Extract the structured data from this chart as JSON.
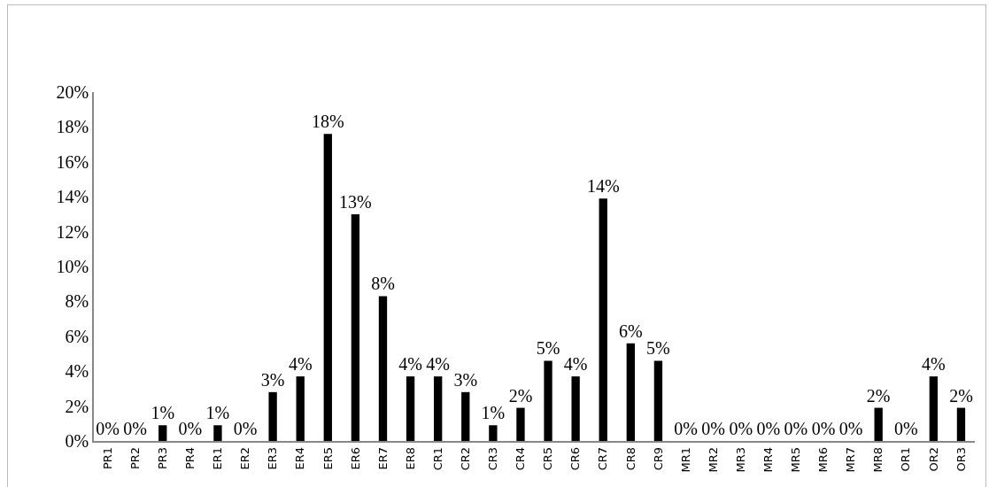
{
  "chart_data": {
    "type": "bar",
    "categories": [
      "PR1",
      "PR2",
      "PR3",
      "PR4",
      "ER1",
      "ER2",
      "ER3",
      "ER4",
      "ER5",
      "ER6",
      "ER7",
      "ER8",
      "CR1",
      "CR2",
      "CR3",
      "CR4",
      "CR5",
      "CR6",
      "CR7",
      "CR8",
      "CR9",
      "MR1",
      "MR2",
      "MR3",
      "MR4",
      "MR5",
      "MR6",
      "MR7",
      "MR8",
      "OR1",
      "OR2",
      "OR3"
    ],
    "values": [
      0,
      0,
      0.9,
      0,
      0.9,
      0,
      2.8,
      3.7,
      17.6,
      13.0,
      8.3,
      3.7,
      3.7,
      2.8,
      0.9,
      1.9,
      4.6,
      3.7,
      13.9,
      5.6,
      4.6,
      0,
      0,
      0,
      0,
      0,
      0,
      0,
      1.9,
      0,
      3.7,
      1.9
    ],
    "value_labels": [
      "0%",
      "0%",
      "1%",
      "0%",
      "1%",
      "0%",
      "3%",
      "4%",
      "18%",
      "13%",
      "8%",
      "4%",
      "4%",
      "3%",
      "1%",
      "2%",
      "5%",
      "4%",
      "14%",
      "6%",
      "5%",
      "0%",
      "0%",
      "0%",
      "0%",
      "0%",
      "0%",
      "0%",
      "2%",
      "0%",
      "4%",
      "2%"
    ],
    "color": "#000000",
    "ylim": [
      0,
      20
    ],
    "yticks": [
      {
        "value": 0,
        "label": "0%"
      },
      {
        "value": 2,
        "label": "2%"
      },
      {
        "value": 4,
        "label": "4%"
      },
      {
        "value": 6,
        "label": "6%"
      },
      {
        "value": 8,
        "label": "8%"
      },
      {
        "value": 10,
        "label": "10%"
      },
      {
        "value": 12,
        "label": "12%"
      },
      {
        "value": 14,
        "label": "14%"
      },
      {
        "value": 16,
        "label": "16%"
      },
      {
        "value": 18,
        "label": "18%"
      },
      {
        "value": 20,
        "label": "20%"
      }
    ],
    "grid": false
  }
}
